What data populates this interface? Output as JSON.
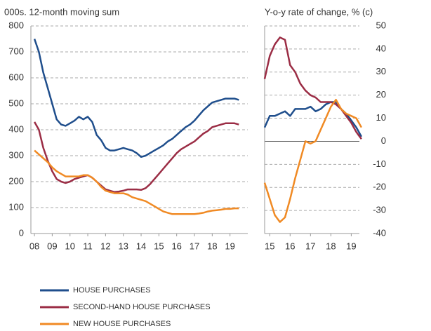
{
  "chart_data": [
    {
      "type": "line",
      "title": "000s. 12-month moving sum",
      "x": [
        2008,
        2008.25,
        2008.5,
        2008.75,
        2009,
        2009.25,
        2009.5,
        2009.75,
        2010,
        2010.25,
        2010.5,
        2010.75,
        2011,
        2011.25,
        2011.5,
        2011.75,
        2012,
        2012.25,
        2012.5,
        2012.75,
        2013,
        2013.25,
        2013.5,
        2013.75,
        2014,
        2014.25,
        2014.5,
        2014.75,
        2015,
        2015.25,
        2015.5,
        2015.75,
        2016,
        2016.25,
        2016.5,
        2016.75,
        2017,
        2017.25,
        2017.5,
        2017.75,
        2018,
        2018.25,
        2018.5,
        2018.75,
        2019,
        2019.25,
        2019.5
      ],
      "xlim": [
        2007.8,
        2020.0
      ],
      "xticks": [
        {
          "value": 2008,
          "label": "08"
        },
        {
          "value": 2009,
          "label": "09"
        },
        {
          "value": 2010,
          "label": "10"
        },
        {
          "value": 2011,
          "label": "11"
        },
        {
          "value": 2012,
          "label": "12"
        },
        {
          "value": 2013,
          "label": "13"
        },
        {
          "value": 2014,
          "label": "14"
        },
        {
          "value": 2015,
          "label": "15"
        },
        {
          "value": 2016,
          "label": "16"
        },
        {
          "value": 2017,
          "label": "17"
        },
        {
          "value": 2018,
          "label": "18"
        },
        {
          "value": 2019,
          "label": "19"
        }
      ],
      "ylim": [
        0,
        800
      ],
      "yticks": [
        0,
        100,
        200,
        300,
        400,
        500,
        600,
        700,
        800
      ],
      "grid": true,
      "series": [
        {
          "name": "HOUSE PURCHASES",
          "color": "#1f4e8c",
          "values": [
            750,
            700,
            620,
            560,
            500,
            440,
            420,
            415,
            425,
            435,
            450,
            440,
            450,
            430,
            380,
            360,
            330,
            320,
            320,
            325,
            330,
            325,
            320,
            310,
            295,
            300,
            310,
            320,
            330,
            340,
            355,
            365,
            380,
            395,
            410,
            420,
            435,
            455,
            475,
            490,
            505,
            510,
            515,
            520,
            520,
            520,
            515
          ]
        },
        {
          "name": "SECOND-HAND HOUSE PURCHASES",
          "color": "#9b2d45",
          "values": [
            430,
            400,
            330,
            280,
            240,
            210,
            200,
            195,
            200,
            210,
            215,
            220,
            225,
            215,
            200,
            185,
            170,
            165,
            160,
            162,
            165,
            170,
            170,
            170,
            168,
            175,
            190,
            210,
            230,
            250,
            270,
            290,
            310,
            325,
            335,
            345,
            355,
            370,
            385,
            395,
            410,
            415,
            420,
            425,
            425,
            425,
            420
          ]
        },
        {
          "name": "NEW HOUSE PURCHASES",
          "color": "#f08a24",
          "values": [
            320,
            305,
            290,
            275,
            255,
            240,
            230,
            220,
            220,
            220,
            220,
            225,
            225,
            215,
            200,
            180,
            165,
            160,
            155,
            155,
            155,
            150,
            140,
            135,
            130,
            125,
            115,
            105,
            95,
            85,
            80,
            75,
            75,
            75,
            75,
            75,
            75,
            77,
            80,
            85,
            88,
            90,
            92,
            95,
            95,
            97,
            97
          ]
        }
      ]
    },
    {
      "type": "line",
      "title": "Y-o-y rate of change, % (c)",
      "x": [
        2014.75,
        2015,
        2015.25,
        2015.5,
        2015.75,
        2016,
        2016.25,
        2016.5,
        2016.75,
        2017,
        2017.25,
        2017.5,
        2017.75,
        2018,
        2018.25,
        2018.5,
        2018.75,
        2019,
        2019.25,
        2019.5
      ],
      "xlim": [
        2014.75,
        2019.4
      ],
      "xticks": [
        {
          "value": 2015,
          "label": "15"
        },
        {
          "value": 2016,
          "label": "16"
        },
        {
          "value": 2017,
          "label": "17"
        },
        {
          "value": 2018,
          "label": "18"
        },
        {
          "value": 2019,
          "label": "19"
        }
      ],
      "y2lim": [
        -40,
        50
      ],
      "y2ticks": [
        -40,
        -30,
        -20,
        -10,
        0,
        10,
        20,
        30,
        40,
        50
      ],
      "grid": true,
      "series": [
        {
          "color": "#1f4e8c",
          "axis": "y2",
          "values": [
            6,
            11,
            11,
            12,
            13,
            11,
            14,
            14,
            14,
            15,
            13,
            14,
            16,
            17,
            17,
            14,
            12,
            9,
            6,
            2
          ]
        },
        {
          "color": "#9b2d45",
          "axis": "y2",
          "values": [
            27,
            37,
            42,
            45,
            44,
            33,
            30,
            25,
            22,
            20,
            19,
            17,
            17,
            17,
            16,
            14,
            11,
            8,
            4,
            1
          ]
        },
        {
          "color": "#f08a24",
          "axis": "y2",
          "values": [
            -18,
            -25,
            -32,
            -35,
            -33,
            -25,
            -16,
            -8,
            0,
            -1,
            0,
            5,
            10,
            15,
            18,
            14,
            12,
            11,
            10,
            6
          ]
        }
      ]
    }
  ]
}
